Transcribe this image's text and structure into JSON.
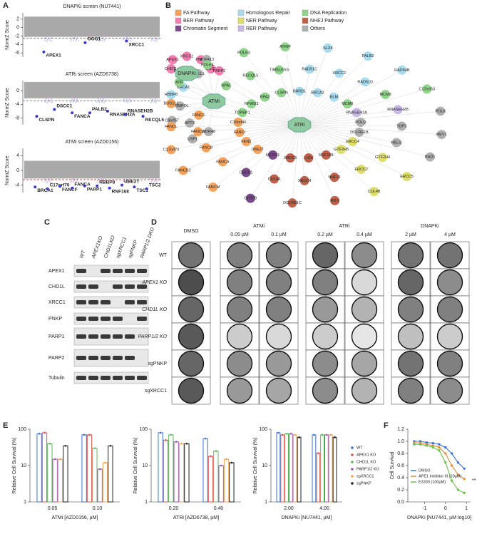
{
  "letters": [
    "A",
    "B",
    "C",
    "D",
    "E",
    "F"
  ],
  "screens": [
    {
      "title": "DNAPKi screen (NU7441)",
      "ylabel": "NormZ Score",
      "ylim": [
        -7,
        3.5
      ],
      "yticks": [
        2,
        0,
        -2,
        -4,
        -6
      ],
      "threshold": -2.5,
      "hits": [
        {
          "label": "APEX1",
          "score": -5.8
        },
        {
          "label": "OGG1",
          "score": -3.6
        },
        {
          "label": "XRCC1",
          "score": -3.2
        }
      ]
    },
    {
      "title": "ATRi screen (AZD6738)",
      "ylabel": "NormZ Score",
      "ylim": [
        -10,
        3
      ],
      "yticks": [
        0,
        -4,
        -8
      ],
      "threshold": -3,
      "hits": [
        {
          "label": "CLSPN",
          "score": -7.5
        },
        {
          "label": "DSCC1",
          "score": -5.5
        },
        {
          "label": "FANCA",
          "score": -6.5
        },
        {
          "label": "PALB2",
          "score": -6.5
        },
        {
          "label": "RNASEH2A",
          "score": -6
        },
        {
          "label": "RNASEH2B",
          "score": -7
        },
        {
          "label": "RECQL5",
          "score": -7.5
        }
      ]
    },
    {
      "title": "ATMi screen (AZD0156)",
      "ylabel": "NormZ Score",
      "ylim": [
        -6,
        6
      ],
      "yticks": [
        4,
        0,
        -4
      ],
      "threshold": -2.5,
      "hits": [
        {
          "label": "BRCA1",
          "score": -4.5
        },
        {
          "label": "C17orf70",
          "score": -5
        },
        {
          "label": "FANCF",
          "score": -4.3
        },
        {
          "label": "FANCA",
          "score": -4.8
        },
        {
          "label": "PARP1",
          "score": -4.2
        },
        {
          "label": "RBBP8",
          "score": -4.2
        },
        {
          "label": "RNF168",
          "score": -4.8
        },
        {
          "label": "UBE2T",
          "score": -4
        },
        {
          "label": "TSC1",
          "score": -4.5
        },
        {
          "label": "TSC2",
          "score": -5
        }
      ]
    }
  ],
  "network": {
    "legend": [
      {
        "name": "FA Pathway",
        "color": "#f5a25d"
      },
      {
        "name": "Homologous Repair",
        "color": "#a9dcef"
      },
      {
        "name": "DNA Replication",
        "color": "#8fd48a"
      },
      {
        "name": "BER Pathway",
        "color": "#f07fb0"
      },
      {
        "name": "NER Pathway",
        "color": "#dede6a"
      },
      {
        "name": "NHEJ Pathway",
        "color": "#c0604a"
      },
      {
        "name": "Chromatin Segment",
        "color": "#7a4a8c"
      },
      {
        "name": "RER Pathway",
        "color": "#c8b8e6"
      },
      {
        "name": "Others",
        "color": "#b0b0b0"
      }
    ],
    "hub_color": "#8fc9a0",
    "hubs": [
      {
        "label": "DNAPKi",
        "nodes": [
          {
            "label": "OGG1",
            "color": "#f07fb0"
          },
          {
            "label": "PNKP",
            "color": "#f07fb0"
          },
          {
            "label": "XRCC1",
            "color": "#f07fb0"
          },
          {
            "label": "APEX1",
            "color": "#f07fb0"
          },
          {
            "label": "CHD1L",
            "color": "#f07fb0"
          }
        ]
      },
      {
        "label": "ATMi",
        "nodes": [
          {
            "label": "WDR48",
            "color": "#b0b0b0"
          },
          {
            "label": "USP1",
            "color": "#b0b0b0"
          },
          {
            "label": "APTX",
            "color": "#b0b0b0"
          },
          {
            "label": "C9orf57",
            "color": "#b0b0b0"
          },
          {
            "label": "PRIMPOL",
            "color": "#b0b0b0"
          },
          {
            "label": "RBBP8",
            "color": "#a9dcef"
          },
          {
            "label": "BRCA1",
            "color": "#a9dcef"
          },
          {
            "label": "RHNO1",
            "color": "#b0b0b0"
          },
          {
            "label": "RTEL1",
            "color": "#b0b0b0"
          },
          {
            "label": "STRA13",
            "color": "#b0b0b0"
          },
          {
            "label": "PARP1",
            "color": "#f07fb0"
          }
        ]
      },
      {
        "label": "ATRi",
        "nodes": [
          {
            "label": "BARD1",
            "color": "#a9dcef"
          },
          {
            "label": "RAD51C",
            "color": "#a9dcef"
          },
          {
            "label": "SLX4",
            "color": "#a9dcef"
          },
          {
            "label": "BRCA2",
            "color": "#a9dcef"
          },
          {
            "label": "XRCC2",
            "color": "#a9dcef"
          },
          {
            "label": "PALB2",
            "color": "#a9dcef"
          },
          {
            "label": "BLM",
            "color": "#a9dcef"
          },
          {
            "label": "RAD51D",
            "color": "#a9dcef"
          },
          {
            "label": "RAD54B",
            "color": "#a9dcef"
          },
          {
            "label": "MCM8",
            "color": "#8fd48a"
          },
          {
            "label": "MCM9",
            "color": "#8fd48a"
          },
          {
            "label": "C17orf53",
            "color": "#8fd48a"
          },
          {
            "label": "RNASEH2A",
            "color": "#c8b8e6"
          },
          {
            "label": "RNASEH2B",
            "color": "#c8b8e6"
          },
          {
            "label": "POLK",
            "color": "#b0b0b0"
          },
          {
            "label": "POLQ",
            "color": "#b0b0b0"
          },
          {
            "label": "TOP1",
            "color": "#b0b0b0"
          },
          {
            "label": "REV1",
            "color": "#b0b0b0"
          },
          {
            "label": "DCLRE1B",
            "color": "#b0b0b0"
          },
          {
            "label": "HELQ",
            "color": "#b0b0b0"
          },
          {
            "label": "RAD1",
            "color": "#b0b0b0"
          },
          {
            "label": "ERCC4",
            "color": "#dede6a"
          },
          {
            "label": "GTF2H4",
            "color": "#dede6a"
          },
          {
            "label": "ERCC5",
            "color": "#dede6a"
          },
          {
            "label": "GTF2H5",
            "color": "#dede6a"
          },
          {
            "label": "ERCC2",
            "color": "#dede6a"
          },
          {
            "label": "CUL4B",
            "color": "#dede6a"
          },
          {
            "label": "RNF168",
            "color": "#c0604a"
          },
          {
            "label": "NHEJ1",
            "color": "#c0604a"
          },
          {
            "label": "RIF1",
            "color": "#c0604a"
          },
          {
            "label": "LIG4",
            "color": "#c0604a"
          },
          {
            "label": "XRCC4",
            "color": "#c0604a"
          },
          {
            "label": "DCLRE1C",
            "color": "#c0604a"
          },
          {
            "label": "XRCC5",
            "color": "#c0604a"
          },
          {
            "label": "CUL4A",
            "color": "#c0604a"
          },
          {
            "label": "CHTF8",
            "color": "#7a4a8c"
          },
          {
            "label": "MCPH1",
            "color": "#7a4a8c"
          },
          {
            "label": "DSCC1",
            "color": "#7a4a8c"
          },
          {
            "label": "FANCM",
            "color": "#f5a25d"
          },
          {
            "label": "UBE2T",
            "color": "#f5a25d"
          },
          {
            "label": "FANCA",
            "color": "#f5a25d"
          },
          {
            "label": "FANCD2",
            "color": "#f5a25d"
          },
          {
            "label": "FEN1",
            "color": "#f5a25d"
          },
          {
            "label": "FANCB",
            "color": "#f5a25d"
          },
          {
            "label": "C17orf70",
            "color": "#f5a25d"
          },
          {
            "label": "FANCI",
            "color": "#f5a25d"
          },
          {
            "label": "FANCG",
            "color": "#f5a25d"
          },
          {
            "label": "FANCL",
            "color": "#f5a25d"
          },
          {
            "label": "C19orf40",
            "color": "#f5a25d"
          },
          {
            "label": "FANCF",
            "color": "#f5a25d"
          },
          {
            "label": "BOD1L1",
            "color": "#f5a25d"
          },
          {
            "label": "TOPBP1",
            "color": "#8fd48a"
          },
          {
            "label": "ETAA1",
            "color": "#8fd48a"
          },
          {
            "label": "ATR",
            "color": "#8fd48a"
          },
          {
            "label": "RFWD3",
            "color": "#8fd48a"
          },
          {
            "label": "RPA1",
            "color": "#8fd48a"
          },
          {
            "label": "POLE4",
            "color": "#8fd48a"
          },
          {
            "label": "RPA2",
            "color": "#8fd48a"
          },
          {
            "label": "RECQL5",
            "color": "#8fd48a"
          },
          {
            "label": "POLE3",
            "color": "#8fd48a"
          },
          {
            "label": "CLSPN",
            "color": "#8fd48a"
          },
          {
            "label": "TIMELESS",
            "color": "#8fd48a"
          },
          {
            "label": "ATRIP",
            "color": "#8fd48a"
          }
        ]
      }
    ]
  },
  "blot": {
    "lanes": [
      "WT",
      "APEX1KO",
      "CHD1LKO",
      "sgXRCC1",
      "sgPNKP",
      "PARP1/2 DKO"
    ],
    "proteins": [
      "APEX1",
      "CHD1L",
      "XRCC1",
      "PNKP",
      "PARP1",
      "PARP2",
      "Tubulin"
    ]
  },
  "colonies": {
    "groups": [
      {
        "drug": "DMSO",
        "doses": []
      },
      {
        "drug": "ATMi",
        "doses": [
          "0.05 µM",
          "0.1 µM"
        ]
      },
      {
        "drug": "ATRi",
        "doses": [
          "0.2 µM",
          "0.4 µM"
        ]
      },
      {
        "drug": "DNAPKi",
        "doses": [
          "2 µM",
          "4 µM"
        ]
      }
    ],
    "rows": [
      "WT",
      "APEX1 KO",
      "CHD1L KO",
      "PARP1/2 KO",
      "sgPNKP",
      "sgXRCC1"
    ]
  },
  "chart_data": [
    {
      "type": "bar",
      "log": true,
      "ylabel": "Relative Cell Survival (%)",
      "xlabel": "ATMi [AZD0156, µM]",
      "categories": [
        "0.05",
        "0.10"
      ],
      "ylim": [
        1,
        100
      ],
      "yticks": [
        1,
        10,
        100
      ],
      "series": [
        {
          "color": "#3b6fd4",
          "values": [
            75,
            70
          ]
        },
        {
          "color": "#e0524a",
          "values": [
            80,
            70
          ]
        },
        {
          "color": "#5cb85c",
          "values": [
            40,
            30
          ]
        },
        {
          "color": "#9b59b6",
          "values": [
            15,
            8
          ]
        },
        {
          "color": "#f0a050",
          "values": [
            15,
            12
          ]
        },
        {
          "color": "#222222",
          "values": [
            35,
            35
          ]
        }
      ]
    },
    {
      "type": "bar",
      "log": true,
      "ylabel": "Relative Cell Survival (%)",
      "xlabel": "ATRi [AZD6738, µM]",
      "categories": [
        "0.20",
        "0.40"
      ],
      "ylim": [
        1,
        100
      ],
      "yticks": [
        1,
        10,
        100
      ],
      "series": [
        {
          "color": "#3b6fd4",
          "values": [
            80,
            55
          ]
        },
        {
          "color": "#e0524a",
          "values": [
            50,
            18
          ]
        },
        {
          "color": "#5cb85c",
          "values": [
            70,
            25
          ]
        },
        {
          "color": "#9b59b6",
          "values": [
            45,
            10
          ]
        },
        {
          "color": "#f0a050",
          "values": [
            40,
            15
          ]
        },
        {
          "color": "#222222",
          "values": [
            40,
            12
          ]
        }
      ]
    },
    {
      "type": "bar",
      "log": true,
      "ylabel": "Relative Cell Survival (%)",
      "xlabel": "DNAPKi [NU7441, µM]",
      "categories": [
        "2.00",
        "4.00"
      ],
      "ylim": [
        1,
        100
      ],
      "yticks": [
        1,
        10,
        100
      ],
      "series": [
        {
          "name": "WT",
          "color": "#3b6fd4",
          "values": [
            80,
            70
          ]
        },
        {
          "name": "APEX1 KO",
          "color": "#e0524a",
          "values": [
            70,
            22
          ]
        },
        {
          "name": "CHD1L KO",
          "color": "#5cb85c",
          "values": [
            75,
            70
          ]
        },
        {
          "name": "PARP1/2 KO",
          "color": "#9b59b6",
          "values": [
            75,
            70
          ]
        },
        {
          "name": "sgXRCC1",
          "color": "#f0a050",
          "values": [
            70,
            70
          ]
        },
        {
          "name": "sgPNKP",
          "color": "#222222",
          "values": [
            60,
            60
          ]
        }
      ]
    },
    {
      "type": "line",
      "ylabel": "Cell Survival",
      "xlabel": "DNAPKi [NU7441, µM log10]",
      "x": [
        -1.5,
        -1.2,
        -0.9,
        -0.6,
        -0.3,
        0,
        0.3,
        0.6,
        0.9
      ],
      "xlim": [
        -1.8,
        1.2
      ],
      "xticks": [
        -1,
        0,
        1
      ],
      "ylim": [
        0,
        1.2
      ],
      "yticks": [
        {
          "value": 0,
          "label": "0.0"
        },
        0.2,
        0.4,
        0.6,
        0.8,
        {
          "value": 1,
          "label": "1.0"
        },
        1.2
      ],
      "annotation": "**",
      "series": [
        {
          "name": "DMSO",
          "color": "#3b6fd4",
          "values": [
            1,
            1,
            0.98,
            0.97,
            0.95,
            0.9,
            0.8,
            0.65,
            0.55
          ]
        },
        {
          "name": "APE1 Inhibitor III (20µM)",
          "color": "#e08a3a",
          "values": [
            0.98,
            0.97,
            0.95,
            0.93,
            0.9,
            0.8,
            0.6,
            0.45,
            0.38
          ]
        },
        {
          "name": "E3330 (100µM)",
          "color": "#6abf4b",
          "values": [
            0.95,
            0.95,
            0.93,
            0.9,
            0.85,
            0.65,
            0.35,
            0.2,
            0.15
          ]
        }
      ]
    }
  ]
}
